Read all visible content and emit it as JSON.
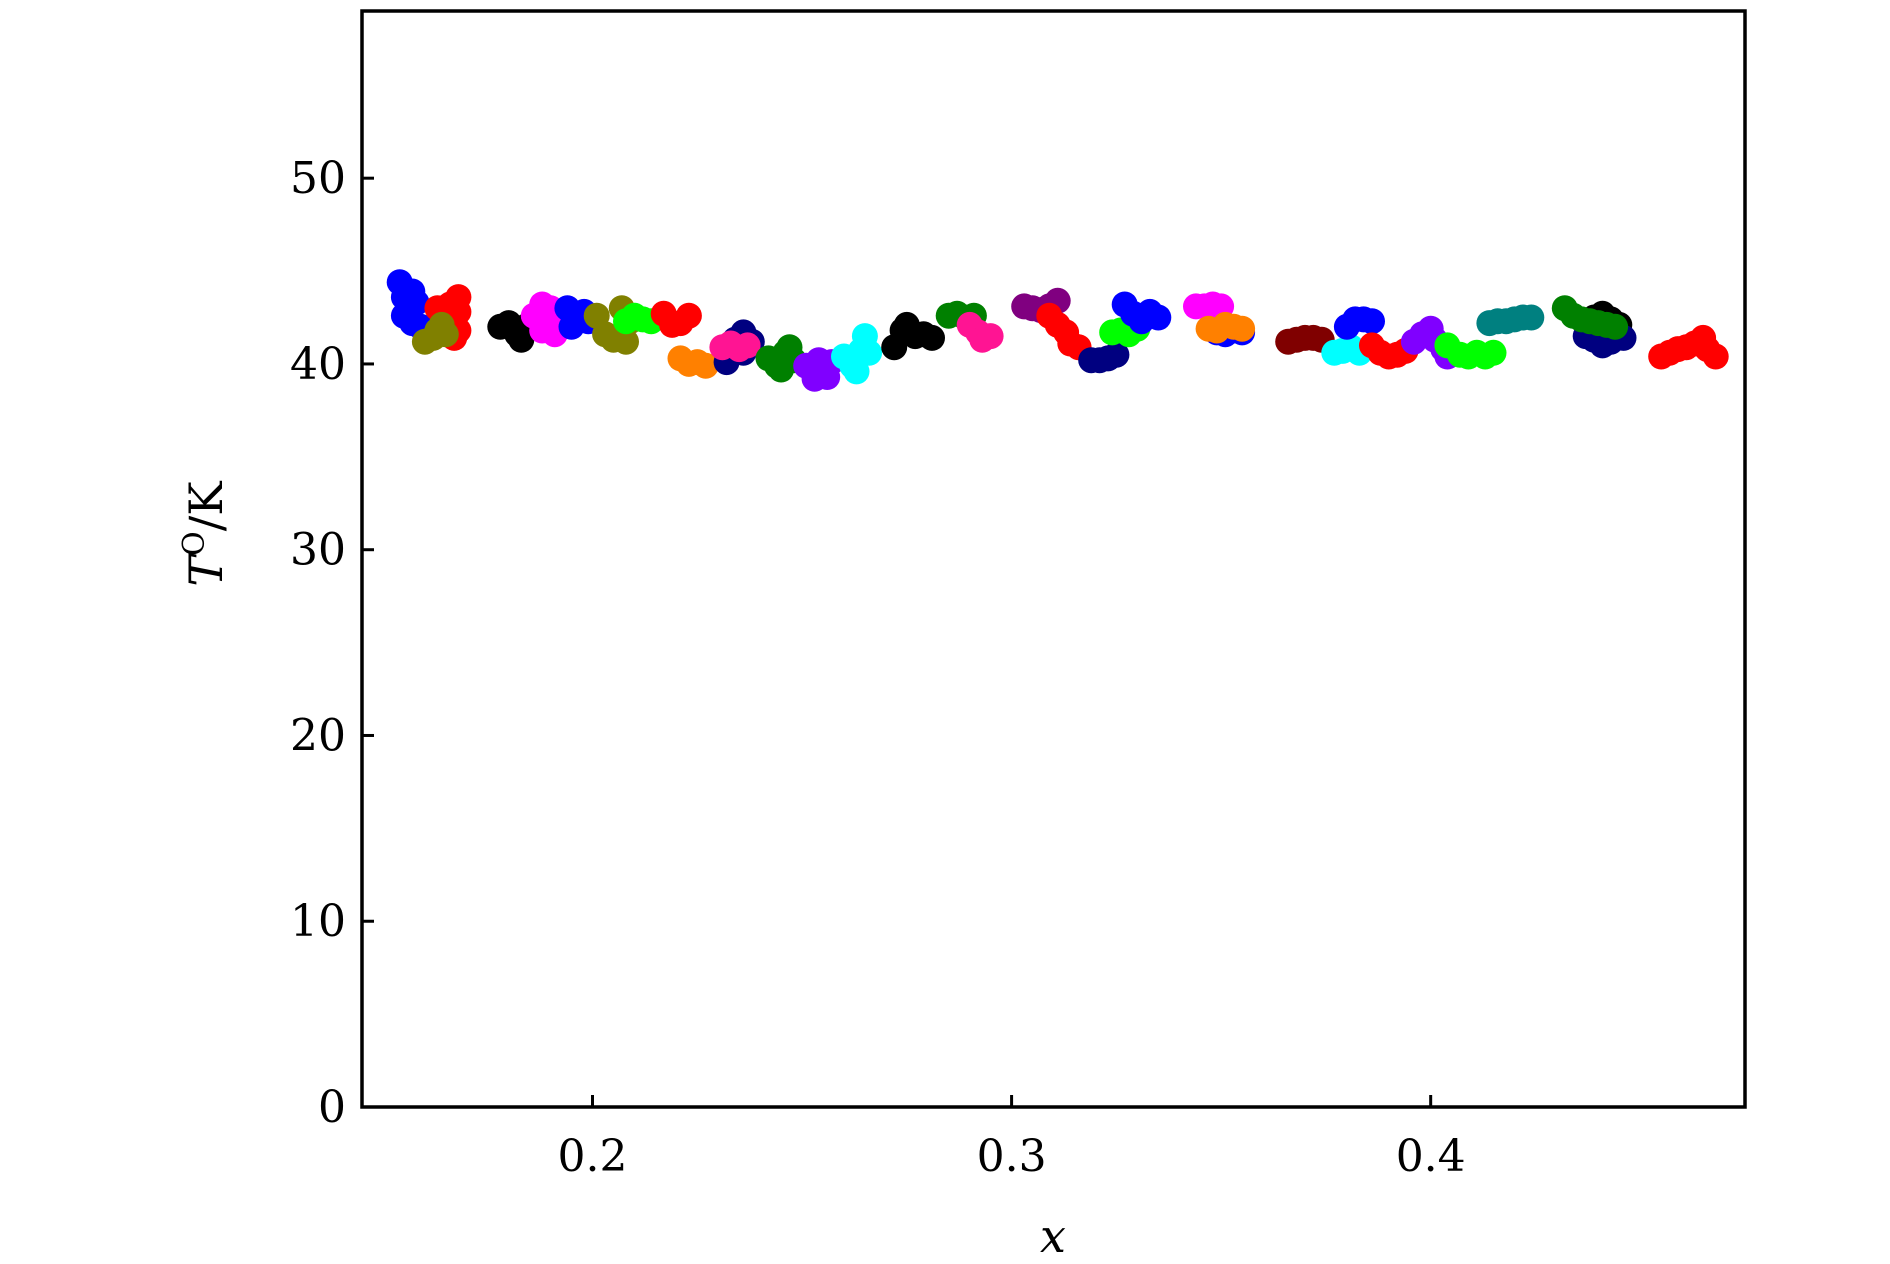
{
  "chart_data": {
    "type": "scatter",
    "title": "",
    "xlabel": "x",
    "ylabel_main": "T",
    "ylabel_sup": "O",
    "ylabel_unit": "/K",
    "xlim": [
      0.145,
      0.475
    ],
    "ylim": [
      0,
      59
    ],
    "xticks": [
      0.2,
      0.3,
      0.4
    ],
    "xtick_labels": [
      "0.2",
      "0.3",
      "0.4"
    ],
    "yticks": [
      0,
      10,
      20,
      30,
      40,
      50
    ],
    "ytick_labels": [
      "0",
      "10",
      "20",
      "30",
      "40",
      "50"
    ],
    "grid": false,
    "legend": "none",
    "series": [
      {
        "color": "#0000ff",
        "points": [
          [
            0.154,
            44.4
          ],
          [
            0.155,
            43.6
          ],
          [
            0.157,
            43.9
          ],
          [
            0.158,
            43.3
          ],
          [
            0.155,
            42.6
          ],
          [
            0.157,
            42.2
          ],
          [
            0.159,
            42.0
          ]
        ]
      },
      {
        "color": "#ff0000",
        "points": [
          [
            0.163,
            43.0
          ],
          [
            0.166,
            43.2
          ],
          [
            0.168,
            43.6
          ],
          [
            0.168,
            42.8
          ],
          [
            0.166,
            42.2
          ],
          [
            0.168,
            41.8
          ],
          [
            0.167,
            41.4
          ]
        ]
      },
      {
        "color": "#808000",
        "points": [
          [
            0.16,
            41.2
          ],
          [
            0.162,
            41.4
          ],
          [
            0.163,
            41.8
          ],
          [
            0.164,
            42.1
          ],
          [
            0.165,
            41.6
          ]
        ]
      },
      {
        "color": "#000000",
        "points": [
          [
            0.178,
            42.0
          ],
          [
            0.18,
            42.2
          ],
          [
            0.182,
            41.6
          ],
          [
            0.183,
            41.3
          ],
          [
            0.184,
            42.0
          ]
        ]
      },
      {
        "color": "#ff00ff",
        "points": [
          [
            0.186,
            42.6
          ],
          [
            0.188,
            43.2
          ],
          [
            0.19,
            43.0
          ],
          [
            0.19,
            42.1
          ],
          [
            0.191,
            41.6
          ],
          [
            0.193,
            42.2
          ],
          [
            0.188,
            41.8
          ]
        ]
      },
      {
        "color": "#0000ff",
        "points": [
          [
            0.194,
            43.0
          ],
          [
            0.196,
            42.6
          ],
          [
            0.198,
            42.8
          ],
          [
            0.199,
            42.3
          ],
          [
            0.195,
            42.0
          ]
        ]
      },
      {
        "color": "#808000",
        "points": [
          [
            0.201,
            42.6
          ],
          [
            0.203,
            41.6
          ],
          [
            0.205,
            41.3
          ],
          [
            0.207,
            43.0
          ],
          [
            0.208,
            41.2
          ],
          [
            0.209,
            42.3
          ]
        ]
      },
      {
        "color": "#00ff00",
        "points": [
          [
            0.208,
            42.3
          ],
          [
            0.21,
            42.6
          ],
          [
            0.212,
            42.4
          ],
          [
            0.214,
            42.3
          ]
        ]
      },
      {
        "color": "#ff0000",
        "points": [
          [
            0.217,
            42.7
          ],
          [
            0.219,
            42.1
          ],
          [
            0.221,
            42.2
          ],
          [
            0.223,
            42.6
          ]
        ]
      },
      {
        "color": "#ff8000",
        "points": [
          [
            0.221,
            40.3
          ],
          [
            0.223,
            40.0
          ],
          [
            0.225,
            40.1
          ],
          [
            0.227,
            39.9
          ]
        ]
      },
      {
        "color": "#000080",
        "points": [
          [
            0.232,
            40.1
          ],
          [
            0.234,
            41.3
          ],
          [
            0.236,
            41.7
          ],
          [
            0.238,
            41.2
          ],
          [
            0.236,
            40.6
          ]
        ]
      },
      {
        "color": "#ff1493",
        "points": [
          [
            0.231,
            40.9
          ],
          [
            0.233,
            41.1
          ],
          [
            0.235,
            40.8
          ],
          [
            0.237,
            41.0
          ]
        ]
      },
      {
        "color": "#008000",
        "points": [
          [
            0.242,
            40.3
          ],
          [
            0.244,
            39.9
          ],
          [
            0.246,
            40.6
          ],
          [
            0.247,
            40.9
          ],
          [
            0.248,
            40.2
          ],
          [
            0.245,
            39.7
          ]
        ]
      },
      {
        "color": "#8000ff",
        "points": [
          [
            0.251,
            39.9
          ],
          [
            0.253,
            39.2
          ],
          [
            0.255,
            39.5
          ],
          [
            0.256,
            39.3
          ],
          [
            0.257,
            40.1
          ],
          [
            0.254,
            40.2
          ]
        ]
      },
      {
        "color": "#00ffff",
        "points": [
          [
            0.26,
            40.4
          ],
          [
            0.262,
            39.9
          ],
          [
            0.263,
            39.6
          ],
          [
            0.264,
            40.7
          ],
          [
            0.265,
            41.5
          ],
          [
            0.266,
            40.6
          ]
        ]
      },
      {
        "color": "#000000",
        "points": [
          [
            0.272,
            40.9
          ],
          [
            0.274,
            41.8
          ],
          [
            0.275,
            42.1
          ],
          [
            0.277,
            41.5
          ],
          [
            0.279,
            41.6
          ],
          [
            0.281,
            41.4
          ]
        ]
      },
      {
        "color": "#008000",
        "points": [
          [
            0.285,
            42.6
          ],
          [
            0.287,
            42.7
          ],
          [
            0.289,
            42.5
          ],
          [
            0.291,
            42.6
          ]
        ]
      },
      {
        "color": "#ff1493",
        "points": [
          [
            0.29,
            42.1
          ],
          [
            0.292,
            41.7
          ],
          [
            0.293,
            41.3
          ],
          [
            0.295,
            41.5
          ]
        ]
      },
      {
        "color": "#800080",
        "points": [
          [
            0.303,
            43.1
          ],
          [
            0.305,
            43.0
          ],
          [
            0.307,
            42.9
          ],
          [
            0.309,
            43.1
          ],
          [
            0.311,
            43.4
          ]
        ]
      },
      {
        "color": "#ff0000",
        "points": [
          [
            0.309,
            42.6
          ],
          [
            0.311,
            42.1
          ],
          [
            0.313,
            41.7
          ],
          [
            0.314,
            41.1
          ],
          [
            0.316,
            40.9
          ]
        ]
      },
      {
        "color": "#000080",
        "points": [
          [
            0.319,
            40.2
          ],
          [
            0.321,
            40.2
          ],
          [
            0.323,
            40.3
          ],
          [
            0.325,
            40.5
          ]
        ]
      },
      {
        "color": "#00ff00",
        "points": [
          [
            0.324,
            41.7
          ],
          [
            0.326,
            41.8
          ],
          [
            0.328,
            41.6
          ],
          [
            0.33,
            41.9
          ]
        ]
      },
      {
        "color": "#0000ff",
        "points": [
          [
            0.327,
            43.2
          ],
          [
            0.329,
            42.7
          ],
          [
            0.331,
            42.3
          ],
          [
            0.333,
            42.8
          ],
          [
            0.335,
            42.5
          ]
        ]
      },
      {
        "color": "#ff00ff",
        "points": [
          [
            0.344,
            43.1
          ],
          [
            0.346,
            43.1
          ],
          [
            0.348,
            43.2
          ],
          [
            0.35,
            43.1
          ]
        ]
      },
      {
        "color": "#0000ff",
        "points": [
          [
            0.349,
            41.7
          ],
          [
            0.351,
            41.6
          ],
          [
            0.353,
            41.8
          ],
          [
            0.355,
            41.7
          ]
        ]
      },
      {
        "color": "#ff8000",
        "points": [
          [
            0.347,
            41.9
          ],
          [
            0.349,
            41.8
          ],
          [
            0.351,
            42.1
          ],
          [
            0.353,
            42.0
          ],
          [
            0.355,
            41.9
          ]
        ]
      },
      {
        "color": "#800000",
        "points": [
          [
            0.366,
            41.2
          ],
          [
            0.368,
            41.3
          ],
          [
            0.37,
            41.4
          ],
          [
            0.372,
            41.4
          ],
          [
            0.374,
            41.3
          ]
        ]
      },
      {
        "color": "#00ffff",
        "points": [
          [
            0.377,
            40.6
          ],
          [
            0.379,
            40.7
          ],
          [
            0.381,
            40.9
          ],
          [
            0.383,
            40.6
          ]
        ]
      },
      {
        "color": "#0000ff",
        "points": [
          [
            0.38,
            42.0
          ],
          [
            0.382,
            42.4
          ],
          [
            0.384,
            42.4
          ],
          [
            0.386,
            42.3
          ]
        ]
      },
      {
        "color": "#ff0000",
        "points": [
          [
            0.386,
            41.0
          ],
          [
            0.388,
            40.6
          ],
          [
            0.39,
            40.4
          ],
          [
            0.392,
            40.5
          ],
          [
            0.394,
            40.7
          ]
        ]
      },
      {
        "color": "#8000ff",
        "points": [
          [
            0.396,
            41.2
          ],
          [
            0.398,
            41.6
          ],
          [
            0.4,
            41.9
          ],
          [
            0.401,
            41.3
          ],
          [
            0.403,
            40.8
          ],
          [
            0.404,
            40.4
          ]
        ]
      },
      {
        "color": "#00ff00",
        "points": [
          [
            0.404,
            41.0
          ],
          [
            0.407,
            40.5
          ],
          [
            0.409,
            40.4
          ],
          [
            0.411,
            40.6
          ],
          [
            0.413,
            40.4
          ],
          [
            0.415,
            40.6
          ]
        ]
      },
      {
        "color": "#008080",
        "points": [
          [
            0.414,
            42.2
          ],
          [
            0.416,
            42.3
          ],
          [
            0.418,
            42.3
          ],
          [
            0.42,
            42.4
          ],
          [
            0.422,
            42.5
          ],
          [
            0.424,
            42.5
          ]
        ]
      },
      {
        "color": "#000000",
        "points": [
          [
            0.439,
            42.5
          ],
          [
            0.441,
            42.7
          ],
          [
            0.443,
            42.4
          ],
          [
            0.445,
            42.1
          ]
        ]
      },
      {
        "color": "#000080",
        "points": [
          [
            0.437,
            41.5
          ],
          [
            0.439,
            41.3
          ],
          [
            0.441,
            41.0
          ],
          [
            0.443,
            41.2
          ],
          [
            0.445,
            41.5
          ],
          [
            0.446,
            41.4
          ]
        ]
      },
      {
        "color": "#008000",
        "points": [
          [
            0.432,
            43.0
          ],
          [
            0.434,
            42.6
          ],
          [
            0.436,
            42.4
          ],
          [
            0.438,
            42.3
          ],
          [
            0.44,
            42.2
          ],
          [
            0.442,
            42.1
          ],
          [
            0.444,
            42.0
          ]
        ]
      },
      {
        "color": "#ff0000",
        "points": [
          [
            0.455,
            40.4
          ],
          [
            0.457,
            40.6
          ],
          [
            0.459,
            40.8
          ],
          [
            0.461,
            40.9
          ],
          [
            0.463,
            41.1
          ],
          [
            0.465,
            41.4
          ],
          [
            0.466,
            40.8
          ],
          [
            0.468,
            40.4
          ]
        ]
      }
    ]
  }
}
